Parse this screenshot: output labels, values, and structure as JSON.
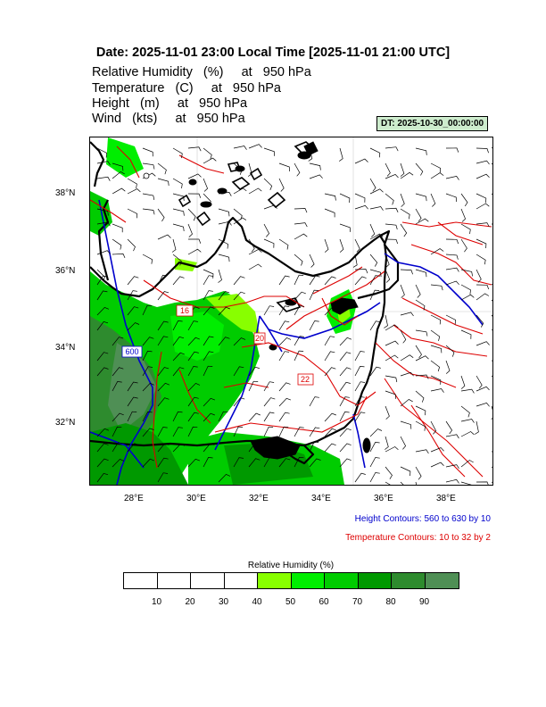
{
  "title": "Date: 2025-11-01  23:00 Local Time [2025-11-01  21:00 UTC]",
  "variables": [
    "Relative Humidity   (%)     at   950 hPa",
    "Temperature   (C)     at   950 hPa",
    "Height   (m)     at   950 hPa",
    "Wind   (kts)     at   950 hPa"
  ],
  "dt_badge": "DT: 2025-10-30_00:00:00",
  "map": {
    "lat_labels": [
      "38°N",
      "36°N",
      "34°N",
      "32°N"
    ],
    "lon_labels": [
      "28°E",
      "30°E",
      "32°E",
      "34°E",
      "36°E",
      "38°E"
    ],
    "contour_labels": {
      "height": [
        "600"
      ],
      "temperature": [
        "16",
        "20",
        "22"
      ]
    },
    "colors": {
      "coast": "#000000",
      "height_contour": "#0000cc",
      "temperature_contour": "#dd0000",
      "wind_barb": "#000000"
    }
  },
  "legend": {
    "height_note": "Height Contours: 560 to 630 by 10",
    "temperature_note": "Temperature Contours: 10 to 32 by 2"
  },
  "colorbar": {
    "title": "Relative Humidity  (%)",
    "labels": [
      "10",
      "20",
      "30",
      "40",
      "50",
      "60",
      "70",
      "80",
      "90"
    ],
    "colors": [
      "#ffffff",
      "#ffffff",
      "#ffffff",
      "#ffffff",
      "#88ff00",
      "#00ee00",
      "#00cc00",
      "#009900",
      "#2e8b2e",
      "#4f8f55"
    ]
  }
}
